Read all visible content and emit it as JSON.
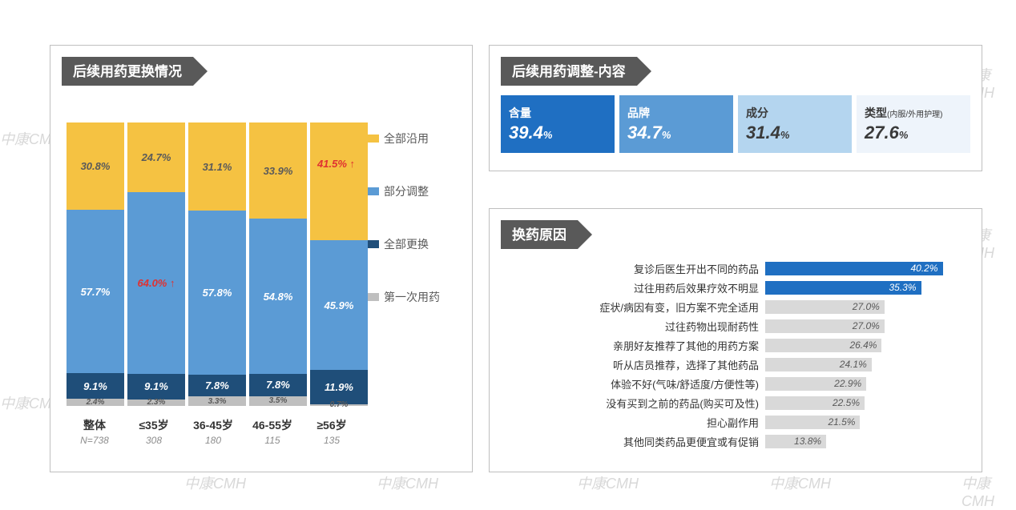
{
  "watermarks": "中康CMH",
  "colors": {
    "panel_border": "#bfbfbf",
    "chip_bg": "#595959",
    "yellow": "#f5c242",
    "blue_light": "#5b9bd5",
    "blue_dark": "#1f4e79",
    "grey": "#bfbfbf",
    "red": "#e03131",
    "hbar_highlight": "#1f6fc2",
    "hbar_normal": "#d9d9d9",
    "tile1": "#1f6fc2",
    "tile2": "#5b9bd5",
    "tile3": "#b4d5ef",
    "tile4": "#eef4fb",
    "tile_text_dark": "#3a3a3a"
  },
  "left_panel": {
    "title": "后续用药更换情况",
    "type": "stacked-bar-100",
    "legend": [
      {
        "label": "全部沿用",
        "color": "#f5c242"
      },
      {
        "label": "部分调整",
        "color": "#5b9bd5"
      },
      {
        "label": "全部更换",
        "color": "#1f4e79"
      },
      {
        "label": "第一次用药",
        "color": "#bfbfbf"
      }
    ],
    "categories": [
      {
        "label": "整体",
        "n": "N=738",
        "segments": {
          "yellow": 30.8,
          "light": 57.7,
          "dark": 9.1,
          "grey": 2.4
        }
      },
      {
        "label": "≤35岁",
        "n": "308",
        "segments": {
          "yellow": 24.7,
          "light": 64.0,
          "dark": 9.1,
          "grey": 2.3
        },
        "light_highlight": true
      },
      {
        "label": "36-45岁",
        "n": "180",
        "segments": {
          "yellow": 31.1,
          "light": 57.8,
          "dark": 7.8,
          "grey": 3.3
        }
      },
      {
        "label": "46-55岁",
        "n": "115",
        "segments": {
          "yellow": 33.9,
          "light": 54.8,
          "dark": 7.8,
          "grey": 3.5
        }
      },
      {
        "label": "≥56岁",
        "n": "135",
        "segments": {
          "yellow": 41.5,
          "light": 45.9,
          "dark": 11.9,
          "grey": 0.7
        },
        "yellow_highlight": true
      }
    ],
    "callouts": {
      "leq35_blue": "64.0% ↑",
      "geq56_yellow": "41.5% ↑"
    }
  },
  "top_right_panel": {
    "title": "后续用药调整-内容",
    "tiles": [
      {
        "label": "含量",
        "value": "39.4",
        "pct": "%",
        "bg": "#1f6fc2",
        "text": "#ffffff"
      },
      {
        "label": "品牌",
        "value": "34.7",
        "pct": "%",
        "bg": "#5b9bd5",
        "text": "#ffffff"
      },
      {
        "label": "成分",
        "value": "31.4",
        "pct": "%",
        "bg": "#b4d5ef",
        "text": "#3a3a3a"
      },
      {
        "label": "类型",
        "sublabel": "(内服/外用护理)",
        "value": "27.6",
        "pct": "%",
        "bg": "#eef4fb",
        "text": "#3a3a3a"
      }
    ]
  },
  "bottom_right_panel": {
    "title": "换药原因",
    "type": "horizontal-bar",
    "max": 45,
    "bars": [
      {
        "label": "复诊后医生开出不同的药品",
        "value": 40.2,
        "highlight": true
      },
      {
        "label": "过往用药后效果疗效不明显",
        "value": 35.3,
        "highlight": true
      },
      {
        "label": "症状/病因有变，旧方案不完全适用",
        "value": 27.0,
        "highlight": false
      },
      {
        "label": "过往药物出现耐药性",
        "value": 27.0,
        "highlight": false
      },
      {
        "label": "亲朋好友推荐了其他的用药方案",
        "value": 26.4,
        "highlight": false
      },
      {
        "label": "听从店员推荐，选择了其他药品",
        "value": 24.1,
        "highlight": false
      },
      {
        "label": "体验不好(气味/舒适度/方便性等)",
        "value": 22.9,
        "highlight": false
      },
      {
        "label": "没有买到之前的药品(购买可及性)",
        "value": 22.5,
        "highlight": false
      },
      {
        "label": "担心副作用",
        "value": 21.5,
        "highlight": false
      },
      {
        "label": "其他同类药品更便宜或有促销",
        "value": 13.8,
        "highlight": false
      }
    ]
  }
}
